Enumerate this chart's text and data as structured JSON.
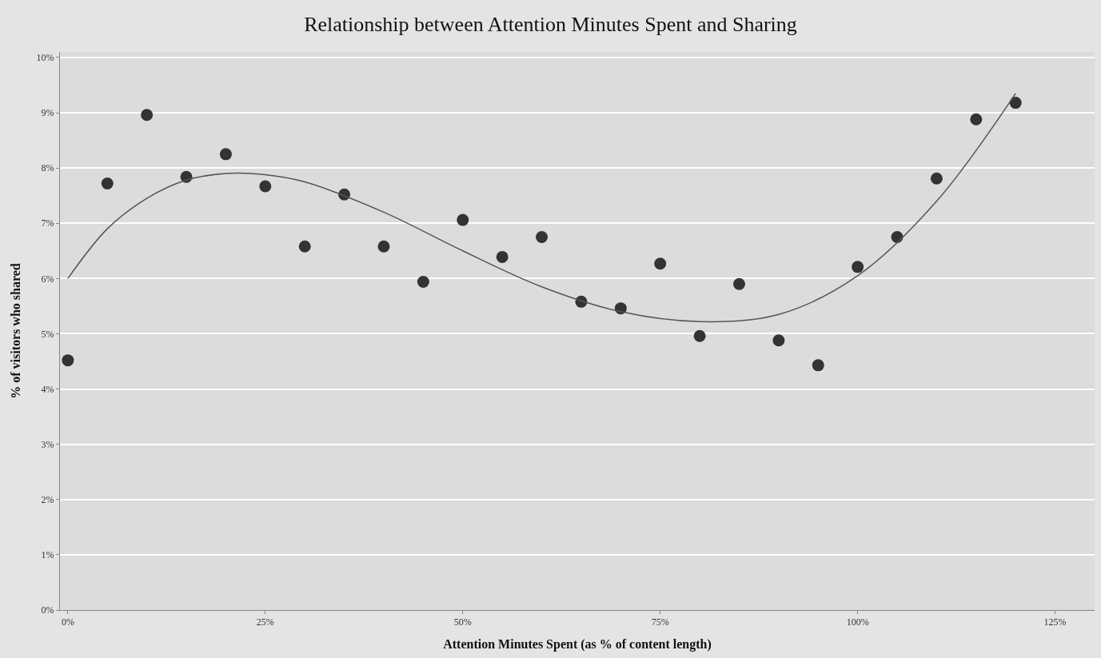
{
  "chart_data": {
    "type": "scatter",
    "title": "Relationship between Attention Minutes Spent and Sharing",
    "xlabel": "Attention Minutes Spent (as % of content length)",
    "ylabel": "% of visitors who shared",
    "x": [
      0,
      5,
      10,
      15,
      20,
      25,
      30,
      35,
      40,
      45,
      50,
      55,
      60,
      65,
      70,
      75,
      80,
      85,
      90,
      95,
      100,
      105,
      110,
      115,
      120
    ],
    "series": [
      {
        "color": "#333333",
        "marker": "circle",
        "values": [
          4.52,
          7.72,
          8.96,
          7.84,
          8.25,
          7.67,
          6.58,
          7.52,
          6.58,
          5.94,
          7.06,
          6.39,
          6.75,
          5.58,
          5.46,
          6.27,
          4.96,
          5.9,
          4.88,
          4.43,
          6.21,
          6.75,
          7.81,
          8.88,
          9.18
        ]
      },
      {
        "type": "line",
        "color": "#555555",
        "marker": "none",
        "line_style": "solid",
        "x": [
          0,
          5,
          10,
          15,
          20,
          25,
          30,
          40,
          50,
          60,
          70,
          80,
          90,
          100,
          110,
          120
        ],
        "values": [
          6.0,
          6.9,
          7.45,
          7.78,
          7.9,
          7.88,
          7.75,
          7.2,
          6.5,
          5.85,
          5.4,
          5.22,
          5.35,
          6.05,
          7.4,
          9.35
        ]
      }
    ],
    "xlim": [
      -1,
      130
    ],
    "xticks": [
      {
        "value": 0,
        "label": "0%"
      },
      {
        "value": 25,
        "label": "25%"
      },
      {
        "value": 50,
        "label": "50%"
      },
      {
        "value": 75,
        "label": "75%"
      },
      {
        "value": 100,
        "label": "100%"
      },
      {
        "value": 125,
        "label": "125%"
      }
    ],
    "ylim": [
      0,
      10.1
    ],
    "yticks": [
      {
        "value": 0,
        "label": "0%"
      },
      {
        "value": 1,
        "label": "1%"
      },
      {
        "value": 2,
        "label": "2%"
      },
      {
        "value": 3,
        "label": "3%"
      },
      {
        "value": 4,
        "label": "4%"
      },
      {
        "value": 5,
        "label": "5%"
      },
      {
        "value": 6,
        "label": "6%"
      },
      {
        "value": 7,
        "label": "7%"
      },
      {
        "value": 8,
        "label": "8%"
      },
      {
        "value": 9,
        "label": "9%"
      },
      {
        "value": 10,
        "label": "10%"
      }
    ],
    "grid": "y",
    "legend": false
  }
}
